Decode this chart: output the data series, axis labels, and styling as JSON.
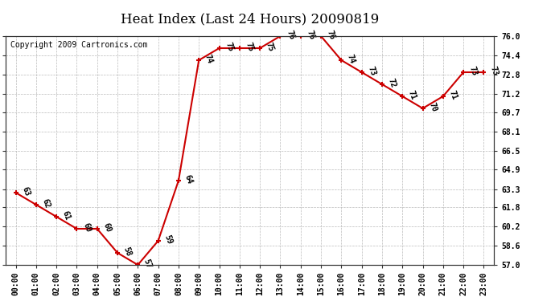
{
  "title": "Heat Index (Last 24 Hours) 20090819",
  "copyright": "Copyright 2009 Cartronics.com",
  "hours": [
    "00:00",
    "01:00",
    "02:00",
    "03:00",
    "04:00",
    "05:00",
    "06:00",
    "07:00",
    "08:00",
    "09:00",
    "10:00",
    "11:00",
    "12:00",
    "13:00",
    "14:00",
    "15:00",
    "16:00",
    "17:00",
    "18:00",
    "19:00",
    "20:00",
    "21:00",
    "22:00",
    "23:00"
  ],
  "values": [
    63,
    62,
    61,
    60,
    60,
    58,
    57,
    59,
    64,
    74,
    75,
    75,
    75,
    76,
    76,
    76,
    74,
    73,
    72,
    71,
    70,
    71,
    73,
    73
  ],
  "ylim_min": 57.0,
  "ylim_max": 76.0,
  "yticks": [
    57.0,
    58.6,
    60.2,
    61.8,
    63.3,
    64.9,
    66.5,
    68.1,
    69.7,
    71.2,
    72.8,
    74.4,
    76.0
  ],
  "line_color": "#cc0000",
  "marker_color": "#cc0000",
  "bg_color": "#ffffff",
  "grid_color": "#bbbbbb",
  "title_fontsize": 12,
  "tick_fontsize": 7,
  "annot_fontsize": 7,
  "copyright_fontsize": 7
}
